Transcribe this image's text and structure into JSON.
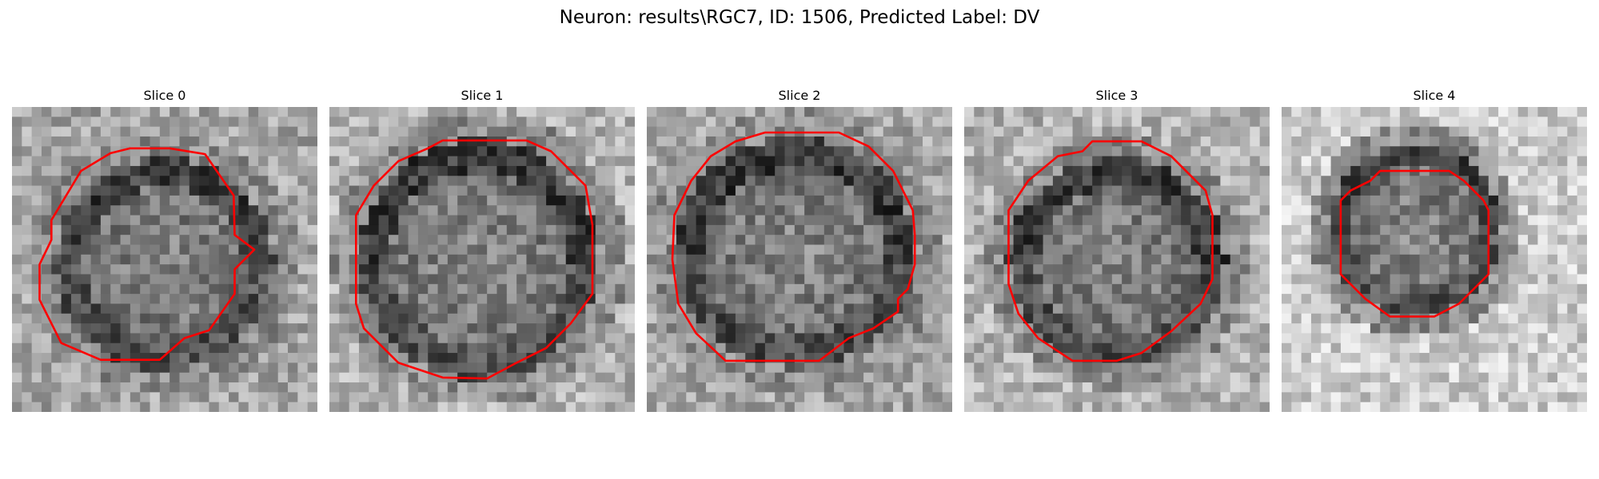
{
  "figure": {
    "suptitle": "Neuron: results\\RGC7, ID: 1506, Predicted Label: DV",
    "slices": [
      {
        "title": "Slice 0"
      },
      {
        "title": "Slice 1"
      },
      {
        "title": "Slice 2"
      },
      {
        "title": "Slice 3"
      },
      {
        "title": "Slice 4"
      }
    ],
    "colors": {
      "contour": "#ff0000",
      "colormap": "grayscale"
    }
  }
}
